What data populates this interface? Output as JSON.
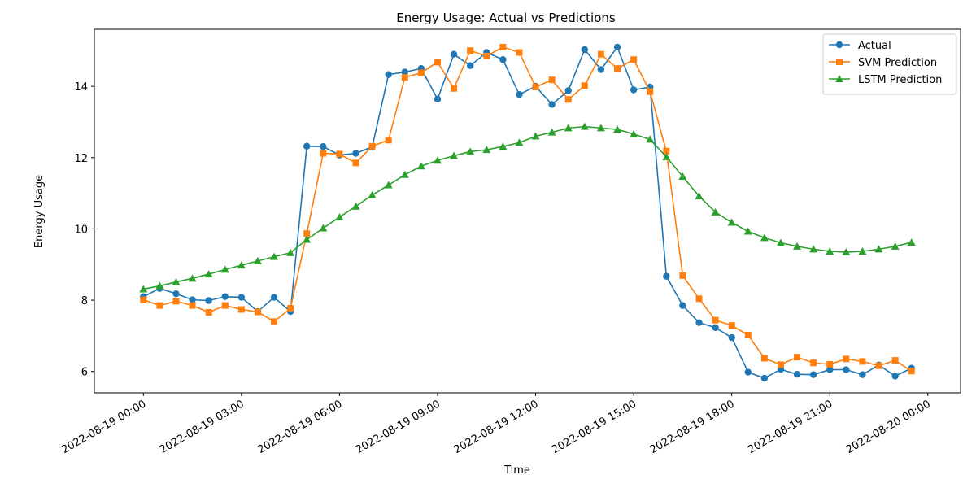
{
  "chart_data": {
    "type": "line",
    "title": "Energy Usage: Actual vs Predictions",
    "xlabel": "Time",
    "ylabel": "Energy Usage",
    "x": [
      "2022-08-19 00:00",
      "2022-08-19 00:30",
      "2022-08-19 01:00",
      "2022-08-19 01:30",
      "2022-08-19 02:00",
      "2022-08-19 02:30",
      "2022-08-19 03:00",
      "2022-08-19 03:30",
      "2022-08-19 04:00",
      "2022-08-19 04:30",
      "2022-08-19 05:00",
      "2022-08-19 05:30",
      "2022-08-19 06:00",
      "2022-08-19 06:30",
      "2022-08-19 07:00",
      "2022-08-19 07:30",
      "2022-08-19 08:00",
      "2022-08-19 08:30",
      "2022-08-19 09:00",
      "2022-08-19 09:30",
      "2022-08-19 10:00",
      "2022-08-19 10:30",
      "2022-08-19 11:00",
      "2022-08-19 11:30",
      "2022-08-19 12:00",
      "2022-08-19 12:30",
      "2022-08-19 13:00",
      "2022-08-19 13:30",
      "2022-08-19 14:00",
      "2022-08-19 14:30",
      "2022-08-19 15:00",
      "2022-08-19 15:30",
      "2022-08-19 16:00",
      "2022-08-19 16:30",
      "2022-08-19 17:00",
      "2022-08-19 17:30",
      "2022-08-19 18:00",
      "2022-08-19 18:30",
      "2022-08-19 19:00",
      "2022-08-19 19:30",
      "2022-08-19 20:00",
      "2022-08-19 20:30",
      "2022-08-19 21:00",
      "2022-08-19 21:30",
      "2022-08-19 22:00",
      "2022-08-19 22:30",
      "2022-08-19 23:00",
      "2022-08-19 23:30"
    ],
    "xlim": [
      "2022-08-18 22:30",
      "2022-08-20 01:00"
    ],
    "xticks": [
      "2022-08-19 00:00",
      "2022-08-19 03:00",
      "2022-08-19 06:00",
      "2022-08-19 09:00",
      "2022-08-19 12:00",
      "2022-08-19 15:00",
      "2022-08-19 18:00",
      "2022-08-19 21:00",
      "2022-08-20 00:00"
    ],
    "ylim": [
      5.4,
      15.6
    ],
    "yticks": [
      6,
      8,
      10,
      12,
      14
    ],
    "grid": false,
    "legend": "top-right",
    "series": [
      {
        "name": "Actual",
        "color": "#1f77b4",
        "marker": "circle",
        "values": [
          8.1,
          8.33,
          8.18,
          8.01,
          7.99,
          8.1,
          8.08,
          7.68,
          8.08,
          7.68,
          12.32,
          12.31,
          12.07,
          12.12,
          12.3,
          14.33,
          14.4,
          14.5,
          13.64,
          14.9,
          14.58,
          14.95,
          14.75,
          13.77,
          14.0,
          13.49,
          13.88,
          15.03,
          14.47,
          15.1,
          13.9,
          13.98,
          8.67,
          7.85,
          7.37,
          7.23,
          6.95,
          5.98,
          5.81,
          6.06,
          5.92,
          5.91,
          6.05,
          6.05,
          5.91,
          6.18,
          5.87,
          6.09
        ]
      },
      {
        "name": "SVM Prediction",
        "color": "#ff7f0e",
        "marker": "square",
        "values": [
          8.01,
          7.85,
          7.97,
          7.85,
          7.66,
          7.85,
          7.74,
          7.67,
          7.4,
          7.77,
          9.87,
          12.12,
          12.1,
          11.85,
          12.32,
          12.49,
          14.25,
          14.38,
          14.68,
          13.94,
          15.0,
          14.85,
          15.1,
          14.95,
          13.98,
          14.18,
          13.63,
          14.02,
          14.9,
          14.5,
          14.75,
          13.85,
          12.18,
          8.69,
          8.04,
          7.44,
          7.29,
          7.02,
          6.37,
          6.19,
          6.4,
          6.24,
          6.2,
          6.35,
          6.28,
          6.16,
          6.31,
          6.01
        ]
      },
      {
        "name": "LSTM Prediction",
        "color": "#2ca02c",
        "marker": "triangle",
        "values": [
          8.31,
          8.4,
          8.51,
          8.61,
          8.73,
          8.86,
          8.98,
          9.1,
          9.22,
          9.33,
          9.7,
          10.02,
          10.33,
          10.63,
          10.95,
          11.23,
          11.52,
          11.76,
          11.92,
          12.05,
          12.17,
          12.22,
          12.31,
          12.42,
          12.6,
          12.71,
          12.83,
          12.87,
          12.83,
          12.79,
          12.66,
          12.51,
          12.02,
          11.47,
          10.92,
          10.47,
          10.18,
          9.93,
          9.75,
          9.61,
          9.51,
          9.43,
          9.37,
          9.35,
          9.37,
          9.43,
          9.51,
          9.62
        ]
      }
    ]
  }
}
